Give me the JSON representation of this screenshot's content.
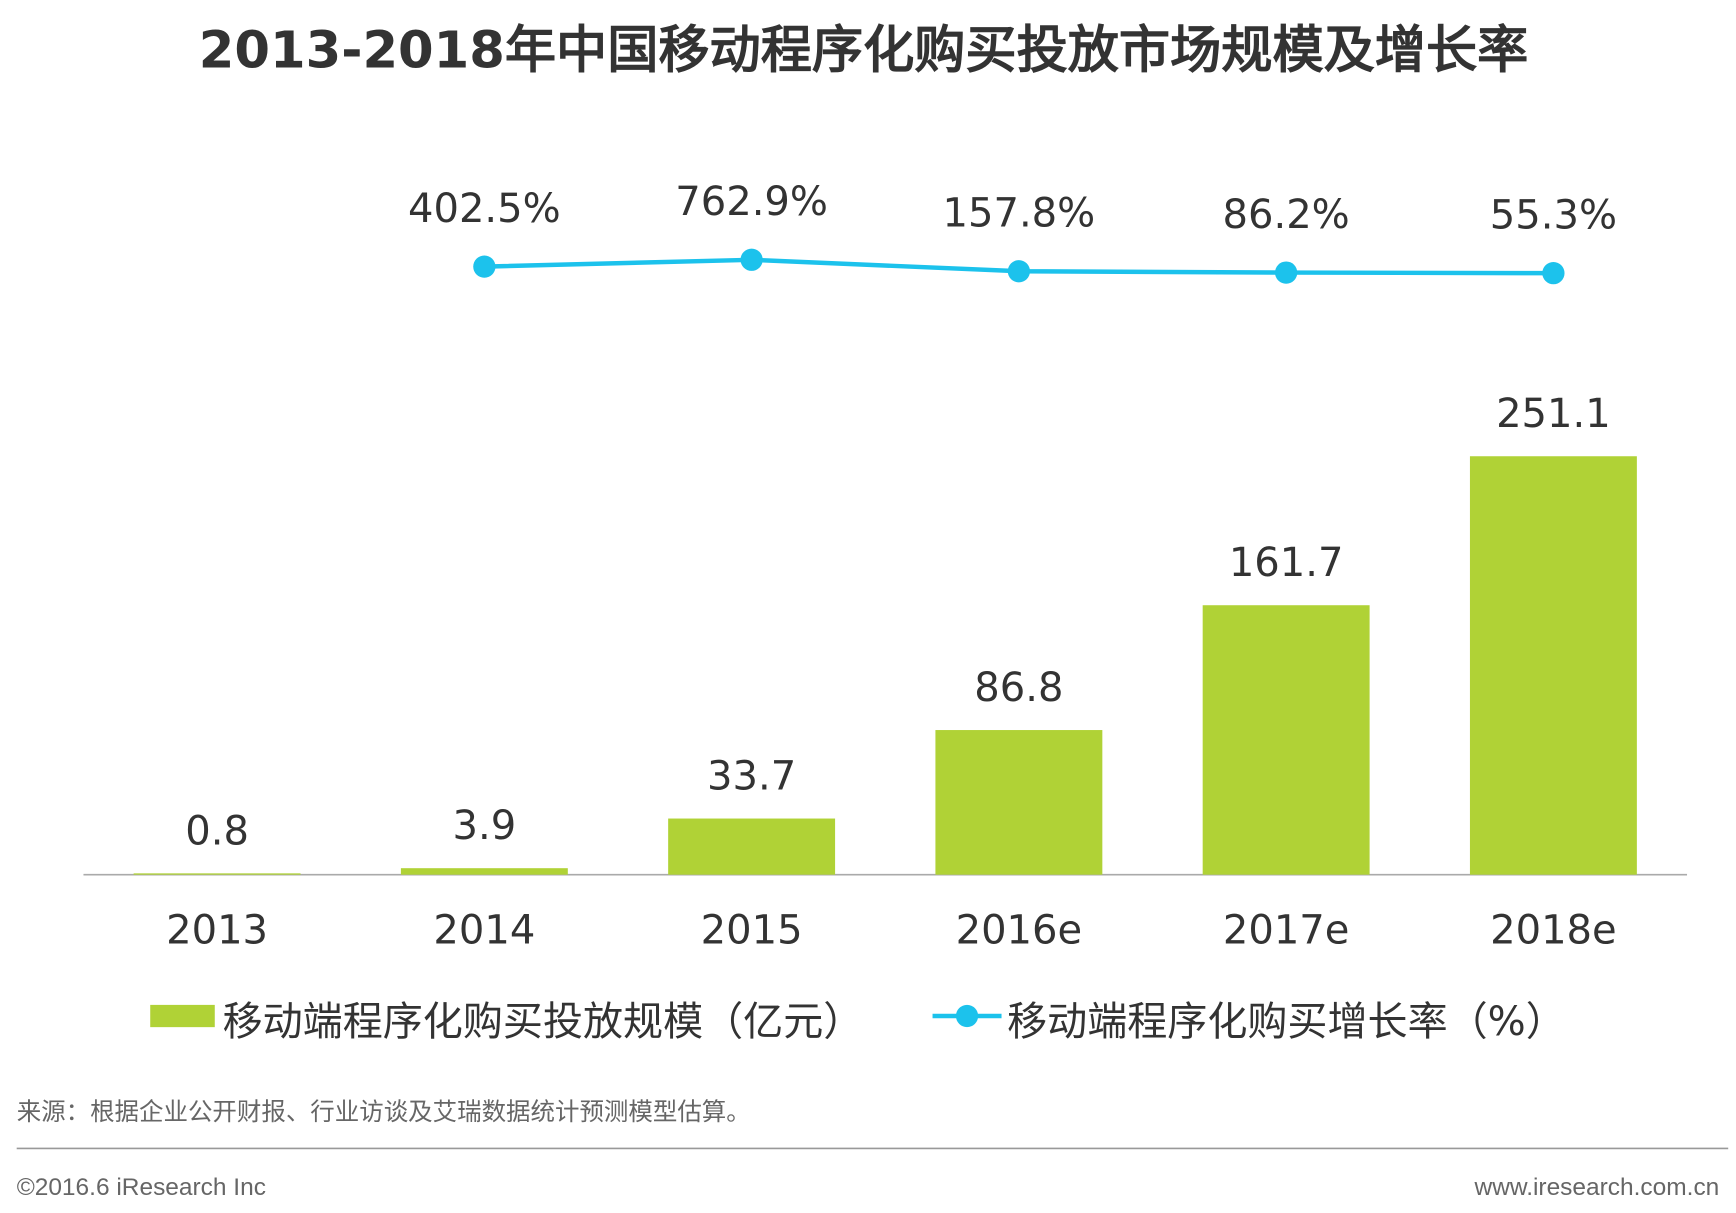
{
  "chart_data": {
    "type": "bar",
    "title": "2013-2018年中国移动程序化购买投放市场规模及增长率",
    "categories": [
      "2013",
      "2014",
      "2015",
      "2016e",
      "2017e",
      "2018e"
    ],
    "series": [
      {
        "name": "移动端程序化购买投放规模（亿元）",
        "type": "bar",
        "color": "#b0d236",
        "values": [
          0.8,
          3.9,
          33.7,
          86.8,
          161.7,
          251.1
        ]
      },
      {
        "name": "移动端程序化购买增长率（%）",
        "type": "line",
        "axis": "y2",
        "color": "#1cc2ec",
        "values": [
          null,
          402.5,
          762.9,
          157.8,
          86.2,
          55.3
        ],
        "value_labels": [
          null,
          "402.5%",
          "762.9%",
          "157.8%",
          "86.2%",
          "55.3%"
        ]
      }
    ],
    "ylim": [
      0,
      400
    ],
    "y2lim": [
      -31800,
      3500
    ]
  },
  "source": "来源：根据企业公开财报、行业访谈及艾瑞数据统计预测模型估算。",
  "footer": {
    "left": "©2016.6 iResearch Inc",
    "right": "www.iresearch.com.cn"
  }
}
